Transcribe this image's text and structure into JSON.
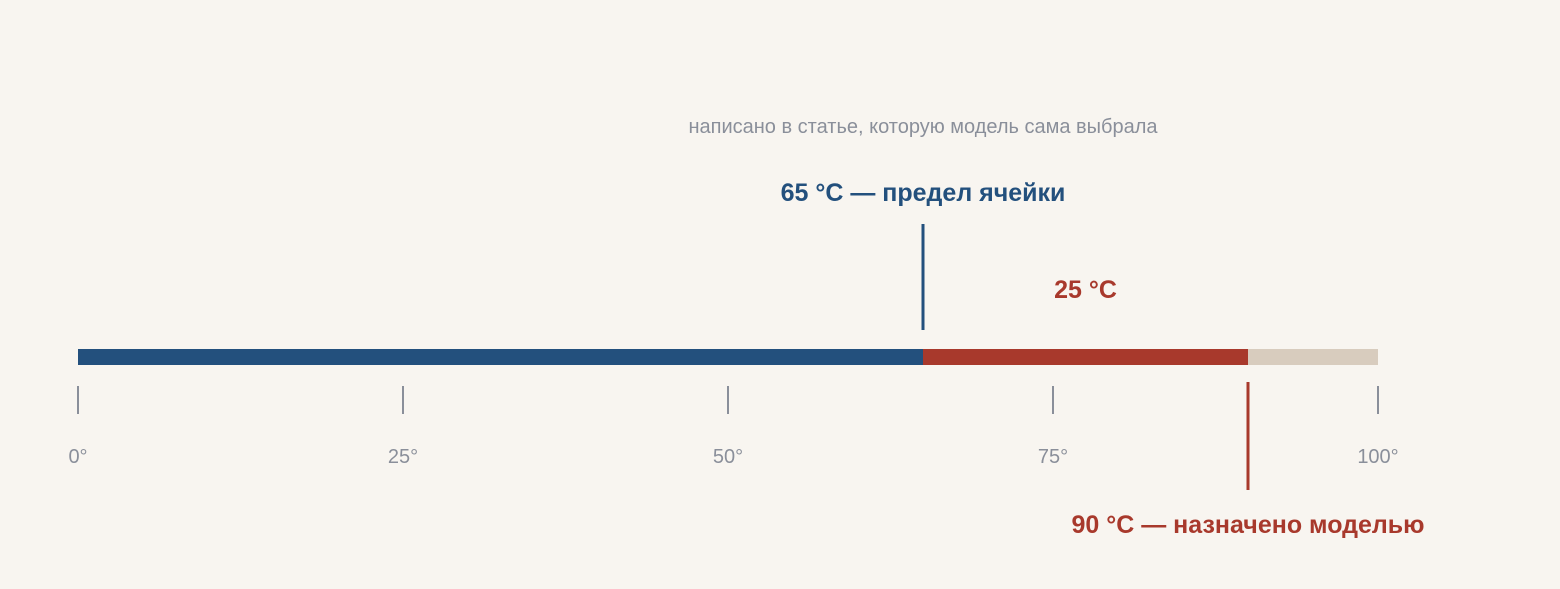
{
  "caption": "написано в статье, которую модель сама выбрала",
  "scale": {
    "min": 0,
    "max": 100,
    "ticks": [
      {
        "value": 0,
        "label": "0°"
      },
      {
        "value": 25,
        "label": "25°"
      },
      {
        "value": 50,
        "label": "50°"
      },
      {
        "value": 75,
        "label": "75°"
      },
      {
        "value": 100,
        "label": "100°"
      }
    ]
  },
  "limit": {
    "value": 65,
    "label": "65 °C — предел ячейки"
  },
  "assigned": {
    "value": 90,
    "label": "90 °C — назначено моделью"
  },
  "excess": {
    "label": "25 °C"
  },
  "colors": {
    "background": "#f8f5f0",
    "limit_blue": "#23507d",
    "excess_red": "#a8392c",
    "remainder": "#d8ccbe",
    "tick_gray": "#8a8f9a"
  }
}
